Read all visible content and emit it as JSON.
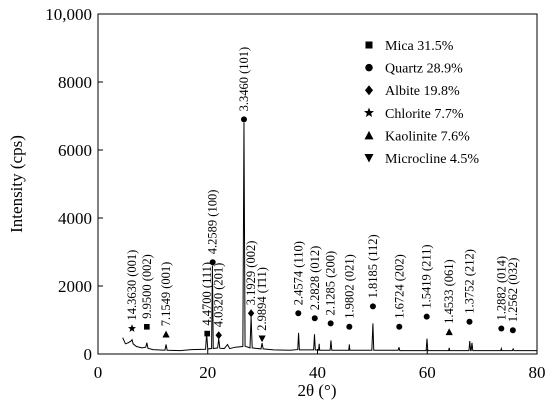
{
  "chart_data": {
    "type": "line",
    "xlabel": "2θ (°)",
    "ylabel": "Intensity (cps)",
    "color": "#000000",
    "xlim": [
      0,
      80
    ],
    "xticks": [
      0,
      20,
      40,
      60,
      80
    ],
    "ylim": [
      0,
      10000
    ],
    "yticks": [
      0,
      2000,
      4000,
      6000,
      8000,
      {
        "value": 10000,
        "label": "10,000"
      }
    ],
    "x": [
      4.5,
      5,
      5.5,
      6,
      6.2,
      6.4,
      7,
      8,
      8.7,
      8.9,
      9.1,
      10,
      12.2,
      12.4,
      12.6,
      15,
      17,
      19.6,
      19.8,
      20,
      20.7,
      20.85,
      21,
      21.8,
      22,
      22.2,
      23,
      23.6,
      24,
      25,
      26.4,
      26.6,
      26.8,
      27.7,
      27.9,
      28.1,
      29.7,
      29.9,
      30.1,
      32,
      35,
      36.4,
      36.55,
      36.7,
      39.3,
      39.45,
      39.6,
      40.2,
      40.3,
      40.4,
      42.3,
      42.45,
      42.6,
      45.7,
      45.8,
      45.9,
      49.9,
      50.1,
      50.25,
      54.7,
      54.85,
      55,
      59.8,
      59.95,
      60.1,
      63.9,
      64,
      64.1,
      67.6,
      67.75,
      67.9,
      68.0,
      68.15,
      68.3,
      73.4,
      73.5,
      73.6,
      75.5,
      75.65,
      75.8,
      80
    ],
    "values": [
      480,
      300,
      330,
      380,
      420,
      300,
      220,
      180,
      200,
      330,
      170,
      130,
      110,
      280,
      110,
      100,
      130,
      140,
      600,
      150,
      160,
      2600,
      160,
      180,
      450,
      170,
      160,
      280,
      160,
      200,
      220,
      6800,
      230,
      180,
      1100,
      180,
      150,
      320,
      150,
      120,
      110,
      130,
      620,
      120,
      120,
      580,
      120,
      110,
      300,
      110,
      110,
      400,
      110,
      110,
      280,
      110,
      110,
      900,
      110,
      110,
      200,
      100,
      100,
      450,
      100,
      100,
      180,
      100,
      100,
      380,
      100,
      100,
      330,
      100,
      100,
      160,
      100,
      100,
      150,
      100,
      100
    ],
    "legend": [
      {
        "name": "Mica 31.5%",
        "marker": "square"
      },
      {
        "name": "Quartz 28.9%",
        "marker": "circle"
      },
      {
        "name": "Albite 19.8%",
        "marker": "diamond"
      },
      {
        "name": "Chlorite  7.7%",
        "marker": "star"
      },
      {
        "name": "Kaolinite  7.6%",
        "marker": "triangle-up"
      },
      {
        "name": "Microcline  4.5%",
        "marker": "triangle-down"
      }
    ],
    "annotations": [
      {
        "text": "14.3630 (001)",
        "x": 6.2,
        "y": 750,
        "marker": "star"
      },
      {
        "text": "9.9500 (002)",
        "x": 8.9,
        "y": 800,
        "marker": "square"
      },
      {
        "text": "7.1549 (001)",
        "x": 12.4,
        "y": 580,
        "marker": "triangle-up"
      },
      {
        "text": "4.4700 (111)",
        "x": 19.9,
        "y": 600,
        "marker": "square"
      },
      {
        "text": "4.2589 (100)",
        "x": 20.9,
        "y": 2700,
        "marker": "circle"
      },
      {
        "text": "4.0320 (201)",
        "x": 22.0,
        "y": 550,
        "marker": "diamond"
      },
      {
        "text": "3.3460 (101)",
        "x": 26.6,
        "y": 6900,
        "marker": "circle"
      },
      {
        "text": "3.1929 (002)",
        "x": 27.9,
        "y": 1200,
        "marker": "diamond"
      },
      {
        "text": "2.9894 (1̄11)",
        "x": 29.9,
        "y": 450,
        "marker": "triangle-down"
      },
      {
        "text": "2.4574 (110)",
        "x": 36.5,
        "y": 1200,
        "marker": "circle"
      },
      {
        "text": "2.2828 (012)",
        "x": 39.5,
        "y": 1050,
        "marker": "circle"
      },
      {
        "text": "2.1285 (200)",
        "x": 42.4,
        "y": 900,
        "marker": "circle"
      },
      {
        "text": "1.9802 (021)",
        "x": 45.8,
        "y": 800,
        "marker": "circle"
      },
      {
        "text": "1.8185 (112)",
        "x": 50.1,
        "y": 1400,
        "marker": "circle"
      },
      {
        "text": "1.6724 (202)",
        "x": 54.9,
        "y": 800,
        "marker": "circle"
      },
      {
        "text": "1.5419 (211)",
        "x": 59.9,
        "y": 1100,
        "marker": "circle"
      },
      {
        "text": "1.4533 (061)",
        "x": 64.0,
        "y": 650,
        "marker": "triangle-up"
      },
      {
        "text": "1.3752 (212)",
        "x": 67.7,
        "y": 950,
        "marker": "circle"
      },
      {
        "text": "1.2882 (014)",
        "x": 73.5,
        "y": 750,
        "marker": "circle"
      },
      {
        "text": "1.2562 (032)",
        "x": 75.6,
        "y": 700,
        "marker": "circle"
      }
    ]
  }
}
